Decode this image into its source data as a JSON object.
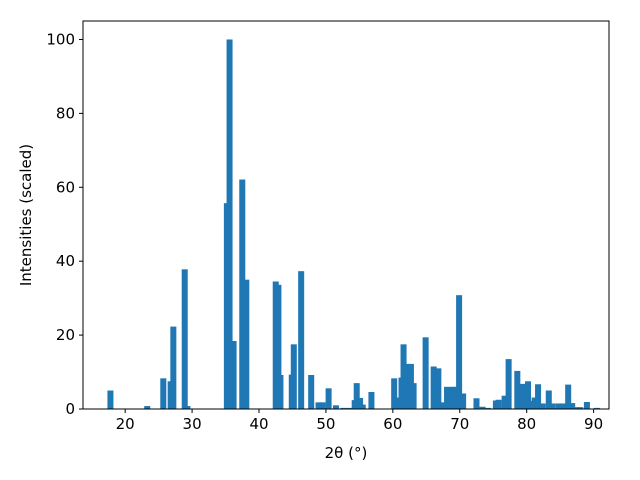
{
  "chart_data": {
    "type": "bar",
    "title": "",
    "xlabel": "2θ (°)",
    "ylabel": "Intensities (scaled)",
    "xlim": [
      13.7,
      92.3
    ],
    "ylim": [
      0,
      105
    ],
    "xticks": [
      "20",
      "30",
      "40",
      "50",
      "60",
      "70",
      "80",
      "90"
    ],
    "yticks": [
      "0",
      "20",
      "40",
      "60",
      "80",
      "100"
    ],
    "grid": false,
    "bar_color": "#1f77b4",
    "bar_width": 0.9,
    "series": [
      {
        "x": [
          17.8,
          23.3,
          25.7,
          26.8,
          27.2,
          28.9,
          29.3,
          35.2,
          35.6,
          36.2,
          37.5,
          38.1,
          42.5,
          42.9,
          43.2,
          44.9,
          45.2,
          46.3,
          47.8,
          48.9,
          49.5,
          50.4,
          51.5,
          52.6,
          53.4,
          54.3,
          54.6,
          55.1,
          55.5,
          56.8,
          60.2,
          60.6,
          61.3,
          61.6,
          62.2,
          62.7,
          63.1,
          64.9,
          66.1,
          66.8,
          67.5,
          68.1,
          68.9,
          69.4,
          69.9,
          70.5,
          72.5,
          73.4,
          74.2,
          75.4,
          75.8,
          76.7,
          77.3,
          78.6,
          79.4,
          80.2,
          80.6,
          81.2,
          81.7,
          82.4,
          83.3,
          83.9,
          84.8,
          85.4,
          86.2,
          86.8,
          87.5,
          88.0,
          89.0,
          90.5
        ],
        "values": [
          5,
          0.8,
          8.3,
          7.5,
          22.3,
          37.8,
          0.8,
          55.7,
          100,
          18.4,
          62.1,
          35,
          34.5,
          33.6,
          9.2,
          9.3,
          17.5,
          37.3,
          9.2,
          1.8,
          1.8,
          5.6,
          1,
          0.3,
          0.3,
          2.4,
          7,
          3,
          1.2,
          4.6,
          8.3,
          3.1,
          8.5,
          17.5,
          12.2,
          12.2,
          7,
          19.4,
          11.5,
          11,
          1.8,
          6,
          6,
          6,
          30.8,
          4.2,
          2.9,
          0.6,
          0.3,
          2.3,
          2.5,
          3.6,
          13.5,
          10.3,
          6.8,
          7.5,
          2.2,
          3.1,
          6.7,
          1.5,
          5,
          1.5,
          1.5,
          1.5,
          6.6,
          1.6,
          0.5,
          0.5,
          1.9,
          0.3
        ]
      }
    ]
  }
}
